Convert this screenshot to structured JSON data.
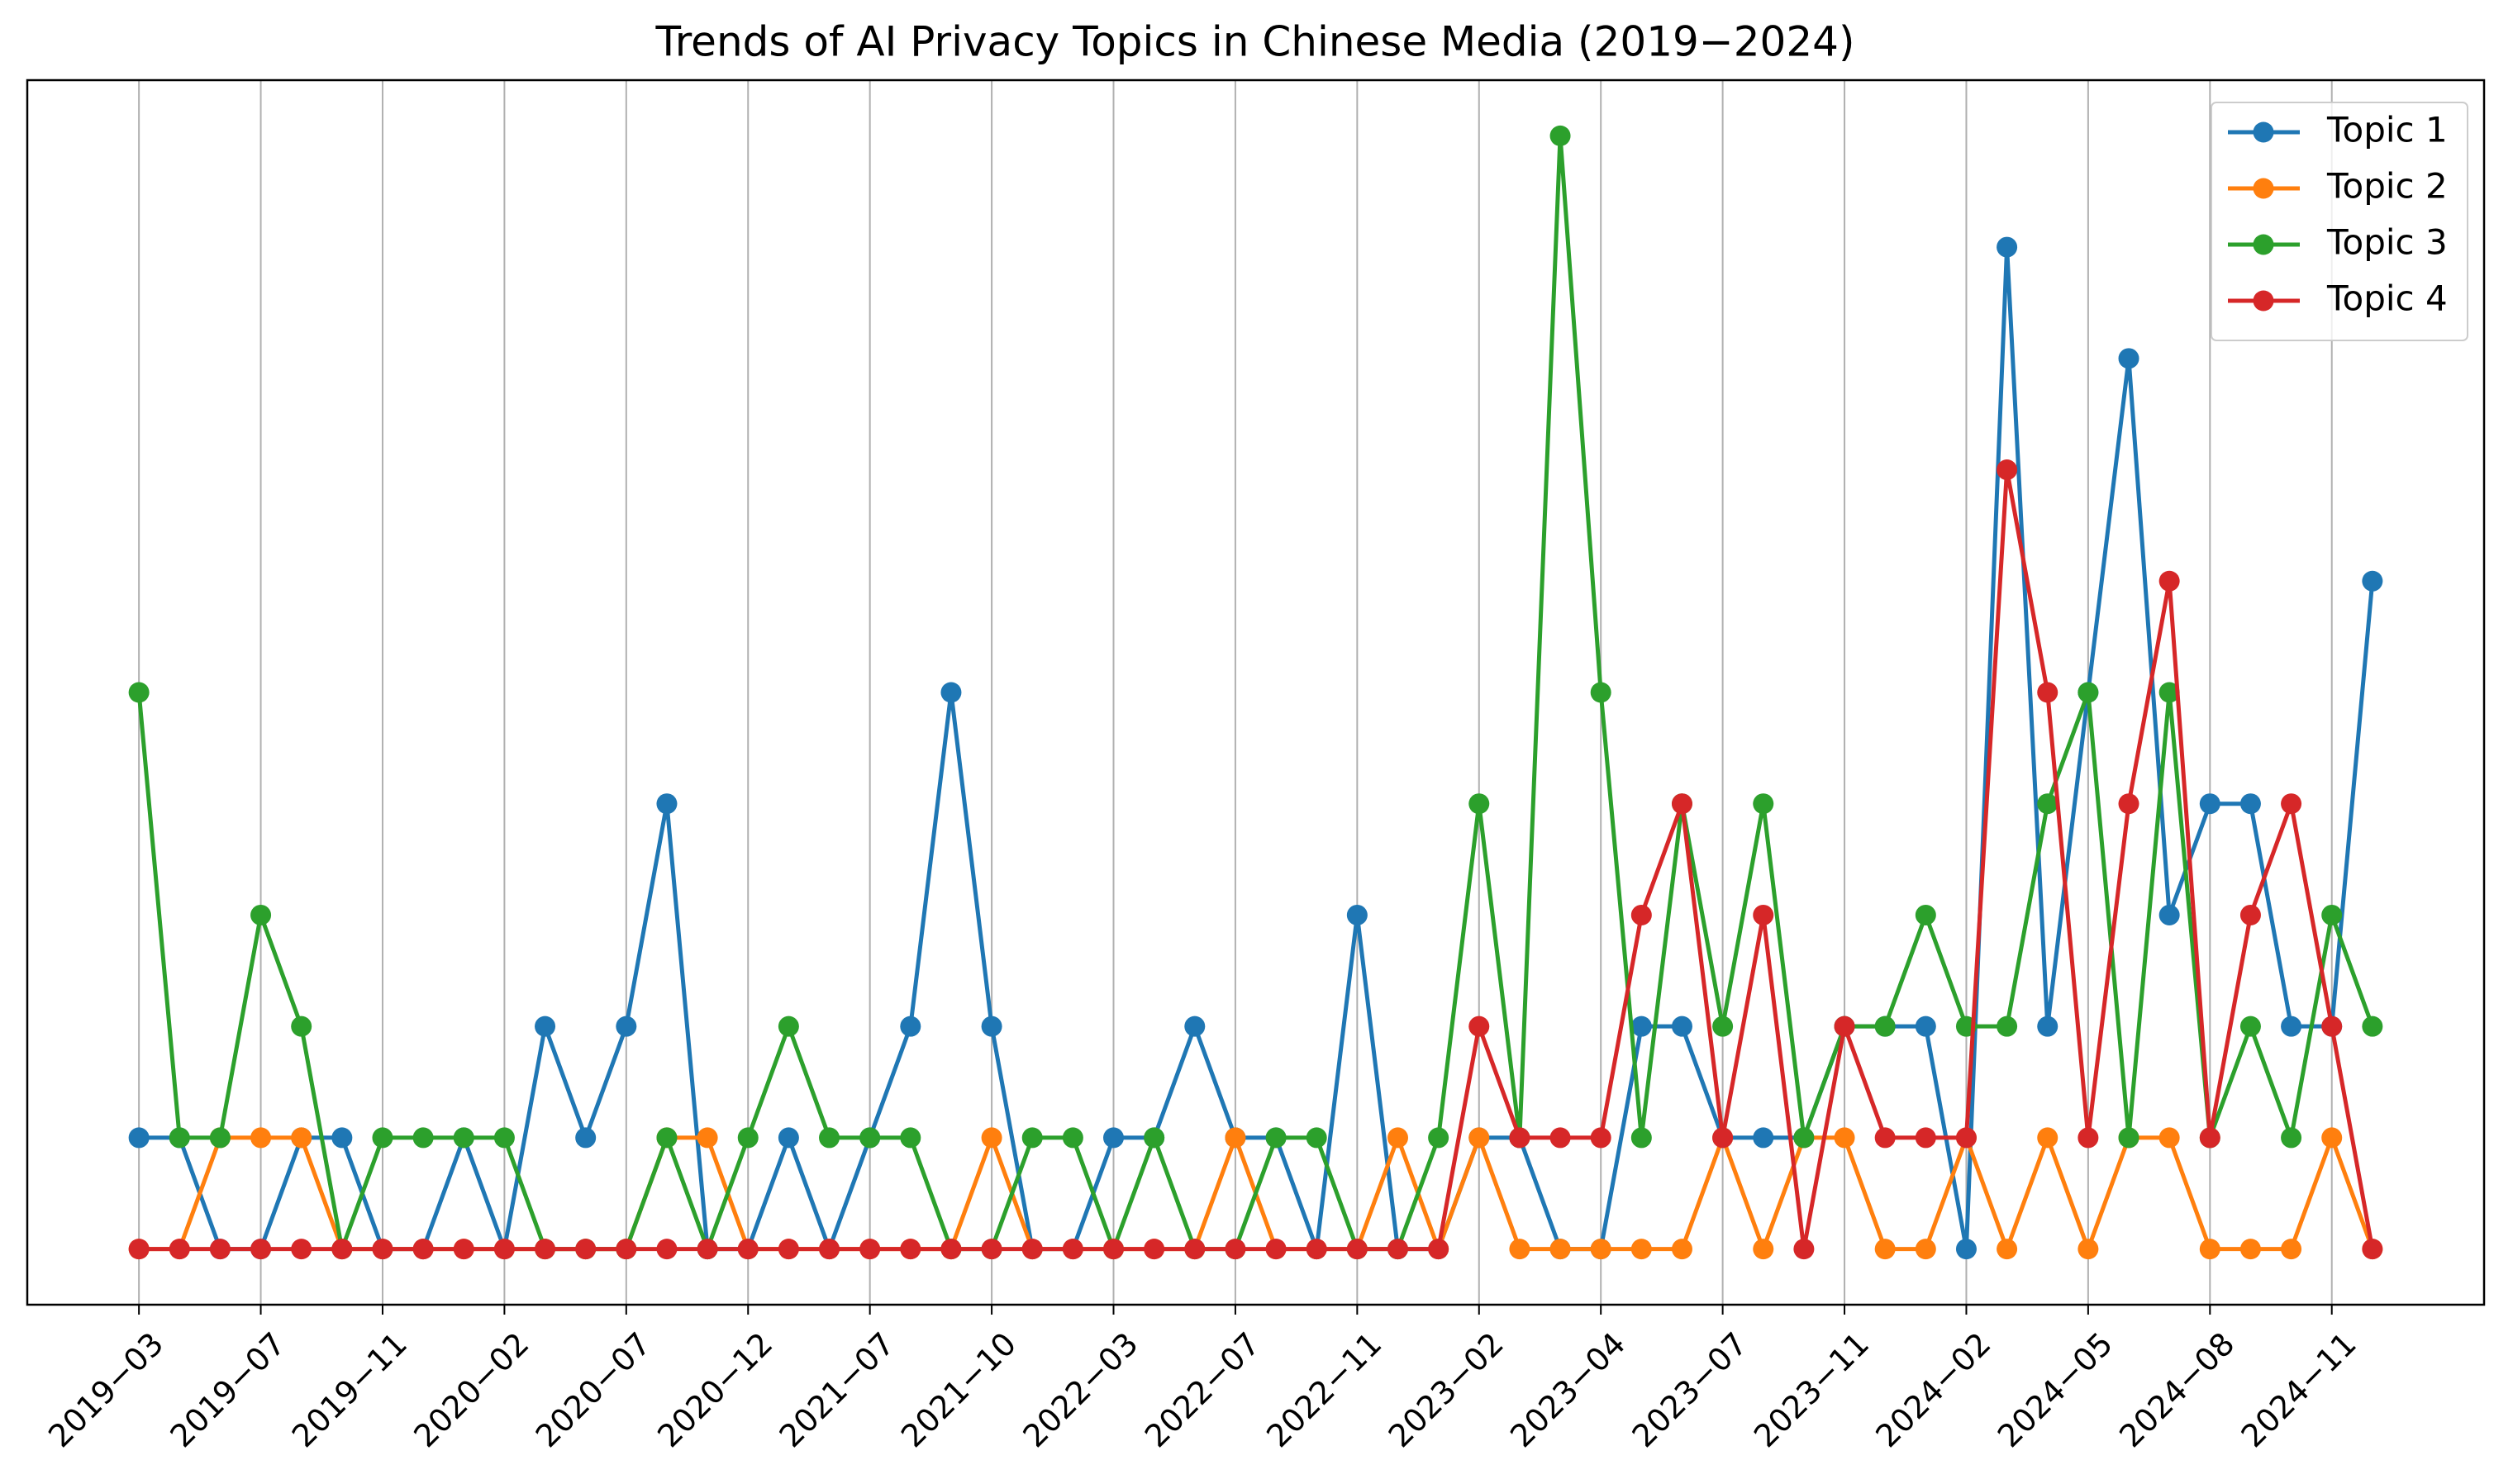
{
  "chart_data": {
    "type": "line",
    "title": "Trends of AI Privacy Topics in Chinese Media (2019−2024)",
    "categories": [
      "2019−03",
      null,
      null,
      "2019−07",
      null,
      null,
      "2019−11",
      null,
      null,
      "2020−02",
      null,
      null,
      "2020−07",
      null,
      null,
      "2020−12",
      null,
      null,
      "2021−07",
      null,
      null,
      "2021−10",
      null,
      null,
      "2022−03",
      null,
      null,
      "2022−07",
      null,
      null,
      "2022−11",
      null,
      null,
      "2023−02",
      null,
      null,
      "2023−04",
      null,
      null,
      "2023−07",
      null,
      null,
      "2023−11",
      null,
      null,
      "2024−02",
      null,
      null,
      "2024−05",
      null,
      null,
      "2024−08",
      null,
      null,
      "2024−11",
      null
    ],
    "series": [
      {
        "name": "Topic 1",
        "color": "#1f77b4",
        "values": [
          1,
          1,
          0,
          0,
          1,
          1,
          0,
          0,
          1,
          0,
          2,
          1,
          2,
          4,
          0,
          0,
          1,
          0,
          1,
          2,
          5,
          2,
          0,
          0,
          1,
          1,
          2,
          1,
          1,
          0,
          3,
          0,
          0,
          1,
          1,
          0,
          0,
          2,
          2,
          1,
          1,
          1,
          2,
          2,
          2,
          0,
          9,
          2,
          5,
          8,
          3,
          4,
          4,
          2,
          2,
          6
        ]
      },
      {
        "name": "Topic 2",
        "color": "#ff7f0e",
        "values": [
          0,
          0,
          1,
          1,
          1,
          0,
          0,
          0,
          0,
          0,
          0,
          0,
          0,
          1,
          1,
          0,
          0,
          0,
          0,
          0,
          0,
          1,
          0,
          0,
          0,
          0,
          0,
          1,
          0,
          0,
          0,
          1,
          0,
          1,
          0,
          0,
          0,
          0,
          0,
          1,
          0,
          1,
          1,
          0,
          0,
          1,
          0,
          1,
          0,
          1,
          1,
          0,
          0,
          0,
          1,
          0
        ]
      },
      {
        "name": "Topic 3",
        "color": "#2ca02c",
        "values": [
          5,
          1,
          1,
          3,
          2,
          0,
          1,
          1,
          1,
          1,
          0,
          0,
          0,
          1,
          0,
          1,
          2,
          1,
          1,
          1,
          0,
          0,
          1,
          1,
          0,
          1,
          0,
          0,
          1,
          1,
          0,
          0,
          1,
          4,
          1,
          10,
          5,
          1,
          4,
          2,
          4,
          1,
          2,
          2,
          3,
          2,
          2,
          4,
          5,
          1,
          5,
          1,
          2,
          1,
          3,
          2
        ]
      },
      {
        "name": "Topic 4",
        "color": "#d62728",
        "values": [
          0,
          0,
          0,
          0,
          0,
          0,
          0,
          0,
          0,
          0,
          0,
          0,
          0,
          0,
          0,
          0,
          0,
          0,
          0,
          0,
          0,
          0,
          0,
          0,
          0,
          0,
          0,
          0,
          0,
          0,
          0,
          0,
          0,
          2,
          1,
          1,
          1,
          3,
          4,
          1,
          3,
          0,
          2,
          1,
          1,
          1,
          7,
          5,
          1,
          4,
          6,
          1,
          3,
          4,
          2,
          0
        ]
      }
    ],
    "xlim": [
      -2.75,
      57.75
    ],
    "ylim": [
      -0.5,
      10.5
    ],
    "grid": "x",
    "legend": "upper right"
  }
}
